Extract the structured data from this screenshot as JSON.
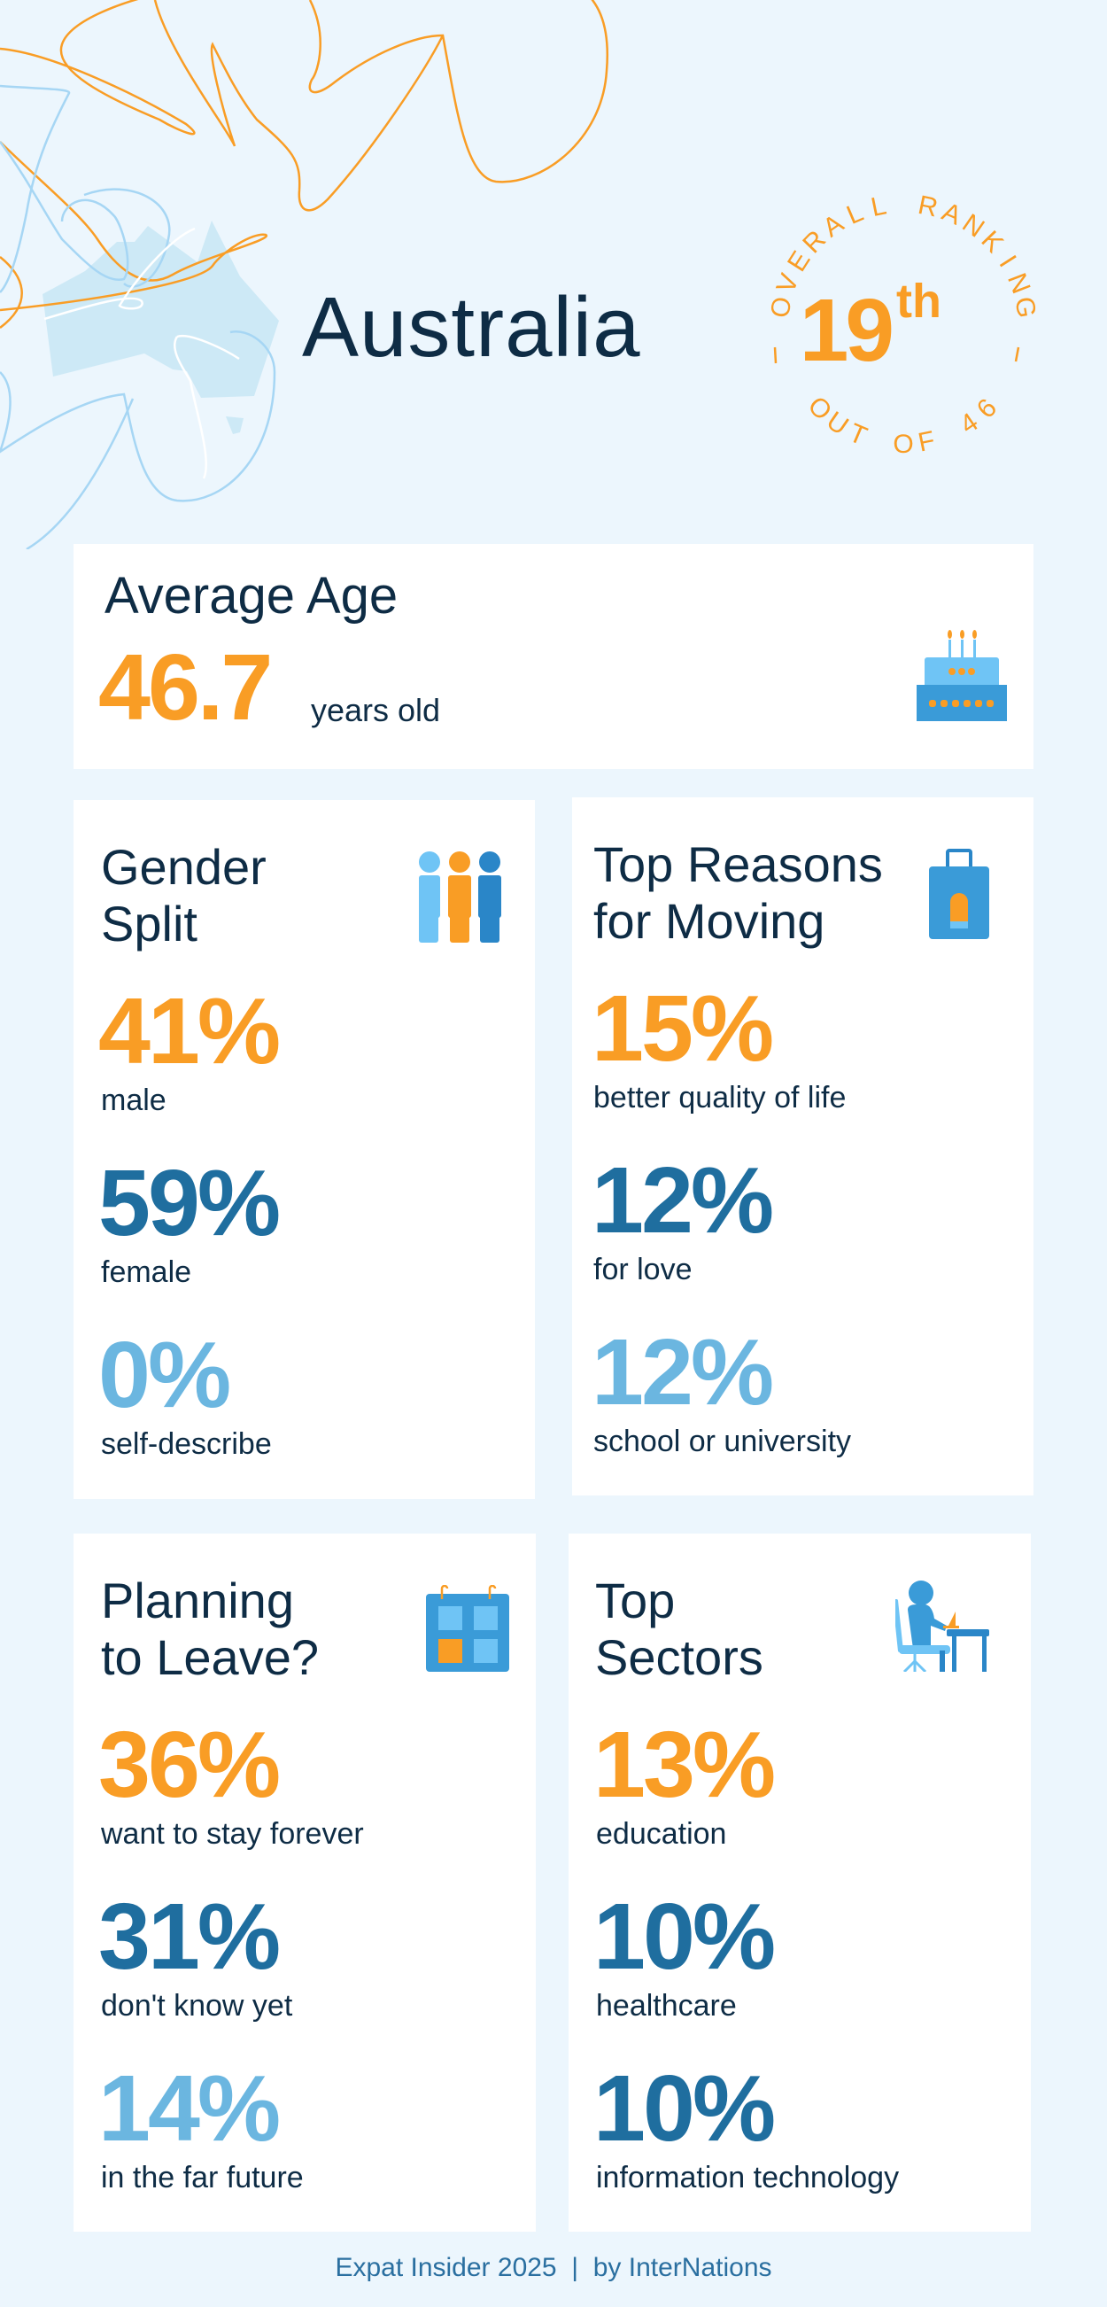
{
  "header": {
    "country": "Australia",
    "ranking": {
      "top_label": "OVERALL RANKING",
      "rank": "19",
      "rank_suffix": "th",
      "bottom_label": "OUT OF 46"
    }
  },
  "average_age": {
    "title": "Average Age",
    "value": "46.7",
    "unit": "years old",
    "icon": "birthday-cake-icon"
  },
  "cards": [
    {
      "title": "Gender\nSplit",
      "icon": "people-icon",
      "stats": [
        {
          "value": "41%",
          "label": "male"
        },
        {
          "value": "59%",
          "label": "female"
        },
        {
          "value": "0%",
          "label": "self-describe"
        }
      ]
    },
    {
      "title": "Top Reasons\nfor Moving",
      "icon": "suitcase-icon",
      "stats": [
        {
          "value": "15%",
          "label": "better quality of life"
        },
        {
          "value": "12%",
          "label": "for love"
        },
        {
          "value": "12%",
          "label": "school or university"
        }
      ]
    },
    {
      "title": "Planning\nto Leave?",
      "icon": "calendar-icon",
      "stats": [
        {
          "value": "36%",
          "label": "want to stay forever"
        },
        {
          "value": "31%",
          "label": "don't know yet"
        },
        {
          "value": "14%",
          "label": "in the far future"
        }
      ]
    },
    {
      "title": "Top\nSectors",
      "icon": "office-worker-icon",
      "stats": [
        {
          "value": "13%",
          "label": "education"
        },
        {
          "value": "10%",
          "label": "healthcare"
        },
        {
          "value": "10%",
          "label": "information technology"
        }
      ]
    }
  ],
  "colors": {
    "background": "#ecf6fd",
    "orange": "#f99d25",
    "dark_blue": "#1f6e9f",
    "light_blue": "#6bb6e0",
    "text": "#0e2c45"
  },
  "footer": "Expat Insider 2025  |  by InterNations"
}
